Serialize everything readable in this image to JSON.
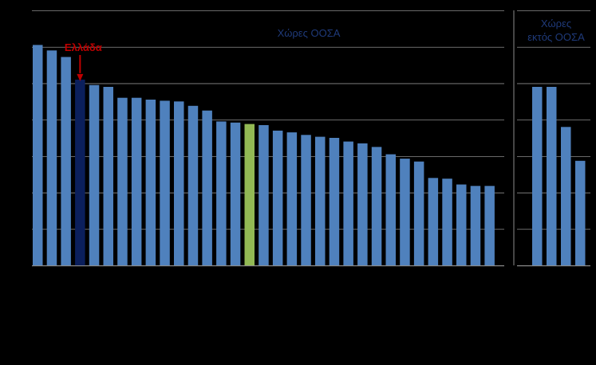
{
  "chart_data": {
    "type": "bar",
    "panels": [
      {
        "label": "Χώρες ΟΟΣΑ",
        "values": [
          60.5,
          59,
          57.2,
          51,
          49.5,
          49,
          46,
          46,
          45.5,
          45.2,
          45,
          43.8,
          42.5,
          39.5,
          39.2,
          38.8,
          38.5,
          37,
          36.5,
          35.8,
          35.3,
          35,
          34,
          33.5,
          32.5,
          30.5,
          29.3,
          28.5,
          24,
          23.8,
          22.2,
          21.8,
          21.8
        ],
        "highlight": {
          "3": "#0b1f5c",
          "15": "#92b954"
        }
      },
      {
        "label_lines": [
          "Χώρες",
          "εκτός ΟΟΣΑ"
        ],
        "values": [
          49,
          49,
          38,
          28.7
        ]
      }
    ],
    "annotation": {
      "text": "Ελλάδα",
      "bar_index": 3
    },
    "ylim": [
      0,
      70
    ],
    "y_gridlines": [
      0,
      10,
      20,
      30,
      40,
      50,
      60,
      70
    ],
    "grid": true,
    "colors": {
      "bar": "#4f81bd",
      "greece": "#0b1f5c",
      "oecd_average": "#92b954",
      "grid": "#8c8c8c",
      "annotation": "#c00000",
      "panel_label": "#1f3a7a"
    }
  }
}
